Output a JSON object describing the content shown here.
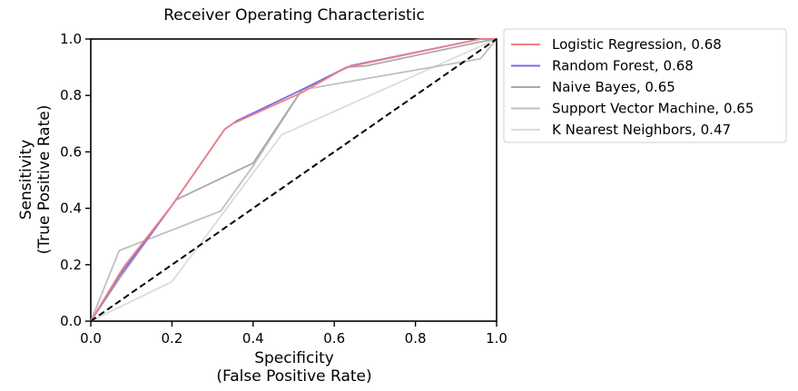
{
  "chart_data": {
    "type": "line",
    "title": "Receiver Operating Characteristic",
    "xlabel": [
      "Specificity",
      "(False Positive Rate)"
    ],
    "ylabel": [
      "Sensitivity",
      "(True Positive Rate)"
    ],
    "xlim": [
      0,
      1
    ],
    "ylim": [
      0,
      1
    ],
    "xticks": [
      "0.0",
      "0.2",
      "0.4",
      "0.6",
      "0.8",
      "1.0"
    ],
    "yticks": [
      "0.0",
      "0.2",
      "0.4",
      "0.6",
      "0.8",
      "1.0"
    ],
    "grid": false,
    "legend_position": "outside-right-top",
    "series": [
      {
        "name": "Logistic Regression, 0.68",
        "color": "#f08080",
        "x": [
          0,
          0.08,
          0.2,
          0.33,
          0.35,
          0.52,
          0.63,
          0.96,
          1.0
        ],
        "y": [
          0,
          0.19,
          0.41,
          0.68,
          0.7,
          0.81,
          0.9,
          1.0,
          1.0
        ]
      },
      {
        "name": "Random Forest,  0.68",
        "color": "#7b68ee",
        "x": [
          0,
          0.07,
          0.2,
          0.33,
          0.36,
          0.52,
          0.64,
          0.96,
          1.0
        ],
        "y": [
          0,
          0.16,
          0.41,
          0.68,
          0.71,
          0.82,
          0.905,
          1.0,
          1.0
        ]
      },
      {
        "name": "Naive Bayes,  0.65",
        "color": "#a9a9a9",
        "x": [
          0,
          0.07,
          0.21,
          0.4,
          0.52,
          0.63,
          0.68,
          0.96,
          1.0
        ],
        "y": [
          0,
          0.15,
          0.43,
          0.56,
          0.82,
          0.9,
          0.905,
          0.99,
          1.0
        ]
      },
      {
        "name": "Support Vector Machine,  0.65",
        "color": "#c0c0c0",
        "x": [
          0,
          0.07,
          0.32,
          0.4,
          0.52,
          0.88,
          0.96,
          1.0
        ],
        "y": [
          0,
          0.25,
          0.39,
          0.55,
          0.82,
          0.91,
          0.93,
          1.0
        ]
      },
      {
        "name": "K Nearest Neighbors, 0.47",
        "color": "#dcdcdc",
        "x": [
          0,
          0.2,
          0.47,
          0.75,
          1.0
        ],
        "y": [
          0,
          0.14,
          0.66,
          0.84,
          1.0
        ]
      }
    ],
    "reference_line": {
      "x": [
        0,
        1
      ],
      "y": [
        0,
        1
      ],
      "style": "dashed",
      "color": "#000000"
    }
  }
}
